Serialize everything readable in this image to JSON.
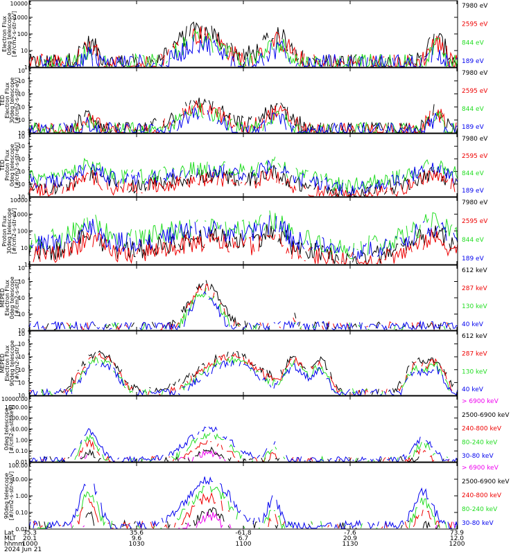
{
  "colors": {
    "black": "#000000",
    "red": "#ee0000",
    "green": "#22dd22",
    "blue": "#0000ee",
    "magenta": "#ee00ee"
  },
  "chart_data": [
    {
      "type": "line",
      "ylabel": [
        "Electron Flux",
        "0deg telescope",
        "[#/cm2-s-str-eV]"
      ],
      "scale": "log",
      "ylim": [
        1,
        10000
      ],
      "yticks": [
        "1",
        "10",
        "100",
        "1000",
        "10000"
      ],
      "legend": [
        {
          "name": "7980 eV",
          "color": "black"
        },
        {
          "name": "2595 eV",
          "color": "red"
        },
        {
          "name": "844 eV",
          "color": "green"
        },
        {
          "name": "189 eV",
          "color": "blue"
        }
      ]
    },
    {
      "type": "line",
      "ylabel": [
        "TED",
        "Electron Flux",
        "30deg telescope",
        "[#/cm2-s-str-eV]"
      ],
      "scale": "log",
      "ylim": [
        1,
        100000
      ],
      "yticks": [
        "10",
        "10",
        "10",
        "10",
        "10",
        "10"
      ],
      "ytick_exp": [
        "0",
        "1",
        "2",
        "3",
        "4",
        "5"
      ],
      "legend": [
        {
          "name": "7980 eV",
          "color": "black"
        },
        {
          "name": "2595 eV",
          "color": "red"
        },
        {
          "name": "844 eV",
          "color": "green"
        },
        {
          "name": "189 eV",
          "color": "blue"
        }
      ]
    },
    {
      "type": "line",
      "ylabel": [
        "TED",
        "Proton Flux",
        "0deg telescope",
        "[#/cm2-s-str-eV]"
      ],
      "scale": "log",
      "ylim": [
        1,
        100000
      ],
      "yticks": [
        "10",
        "10",
        "10",
        "10",
        "10",
        "10"
      ],
      "ytick_exp": [
        "0",
        "1",
        "2",
        "3",
        "4",
        "5"
      ],
      "legend": [
        {
          "name": "7980 eV",
          "color": "black"
        },
        {
          "name": "2595 eV",
          "color": "red"
        },
        {
          "name": "844 eV",
          "color": "green"
        },
        {
          "name": "189 eV",
          "color": "blue"
        }
      ]
    },
    {
      "type": "line",
      "ylabel": [
        "Proton Flux",
        "30deg telescope",
        "[#/cm2-s-str-eV]"
      ],
      "scale": "log",
      "ylim": [
        1,
        10000
      ],
      "yticks": [
        "1",
        "10",
        "100",
        "1000",
        "10000"
      ],
      "legend": [
        {
          "name": "7980 eV",
          "color": "black"
        },
        {
          "name": "2595 eV",
          "color": "red"
        },
        {
          "name": "844 eV",
          "color": "green"
        },
        {
          "name": "189 eV",
          "color": "blue"
        }
      ]
    },
    {
      "type": "line",
      "ylabel": [
        "MEPED",
        "Electron Flux",
        "0deg telescope",
        "[#/cm2-s-str]"
      ],
      "scale": "log",
      "ylim": [
        10,
        100000
      ],
      "yticks": [
        "10",
        "10",
        "10",
        "10",
        "10"
      ],
      "ytick_exp": [
        "1",
        "2",
        "3",
        "4",
        "5"
      ],
      "legend": [
        {
          "name": "612 keV",
          "color": "black"
        },
        {
          "name": "287 keV",
          "color": "red"
        },
        {
          "name": "130 keV",
          "color": "green"
        },
        {
          "name": "40 keV",
          "color": "blue"
        }
      ]
    },
    {
      "type": "line",
      "ylabel": [
        "MEPED",
        "Electron Flux",
        "90deg telescope",
        "[#/cm2-s-str]"
      ],
      "scale": "log",
      "ylim": [
        10,
        1000000
      ],
      "yticks": [
        "10",
        "10",
        "10",
        "10",
        "10",
        "10"
      ],
      "ytick_exp": [
        "1",
        "2",
        "3",
        "4",
        "5",
        "6"
      ],
      "legend": [
        {
          "name": "612 keV",
          "color": "black"
        },
        {
          "name": "287 keV",
          "color": "red"
        },
        {
          "name": "130 keV",
          "color": "green"
        },
        {
          "name": "40 keV",
          "color": "blue"
        }
      ]
    },
    {
      "type": "line",
      "ylabel": [
        "0deg telescope",
        "[#/cm2-s-str-keV]"
      ],
      "scale": "log",
      "ylim": [
        0.01,
        10000
      ],
      "yticks": [
        "0.01",
        "0.10",
        "1.00",
        "10.00",
        "100.00",
        "1000.00",
        "10000.00"
      ],
      "legend": [
        {
          "name": "> 6900 keV",
          "color": "magenta"
        },
        {
          "name": "2500-6900 keV",
          "color": "black"
        },
        {
          "name": "240-800 keV",
          "color": "red"
        },
        {
          "name": "80-240 keV",
          "color": "green"
        },
        {
          "name": "30-80 keV",
          "color": "blue"
        }
      ]
    },
    {
      "type": "line",
      "ylabel": [
        "90deg telescope",
        "[#/cm2-s-str-keV]"
      ],
      "scale": "log",
      "ylim": [
        0.01,
        1000
      ],
      "yticks": [
        "0.01",
        "0.10",
        "1.00",
        "10.00",
        "100.00"
      ],
      "legend": [
        {
          "name": "> 6900 keV",
          "color": "magenta"
        },
        {
          "name": "2500-6900 keV",
          "color": "black"
        },
        {
          "name": "240-800 keV",
          "color": "red"
        },
        {
          "name": "80-240 keV",
          "color": "green"
        },
        {
          "name": "30-80 keV",
          "color": "blue"
        }
      ]
    }
  ],
  "x_axis": {
    "row_labels": [
      "Lat",
      "MLT",
      "hhmm"
    ],
    "date": "2024 Jun 21",
    "ticks": [
      {
        "lat": "35.3",
        "mlt": "20.1",
        "hhmm": "1000"
      },
      {
        "lat": "35.6",
        "mlt": "9.6",
        "hhmm": "1030"
      },
      {
        "lat": "-61.8",
        "mlt": "6.7",
        "hhmm": "1100"
      },
      {
        "lat": "-7.6",
        "mlt": "20.9",
        "hhmm": "1130"
      },
      {
        "lat": "73.9",
        "mlt": "12.0",
        "hhmm": "1200"
      }
    ]
  }
}
